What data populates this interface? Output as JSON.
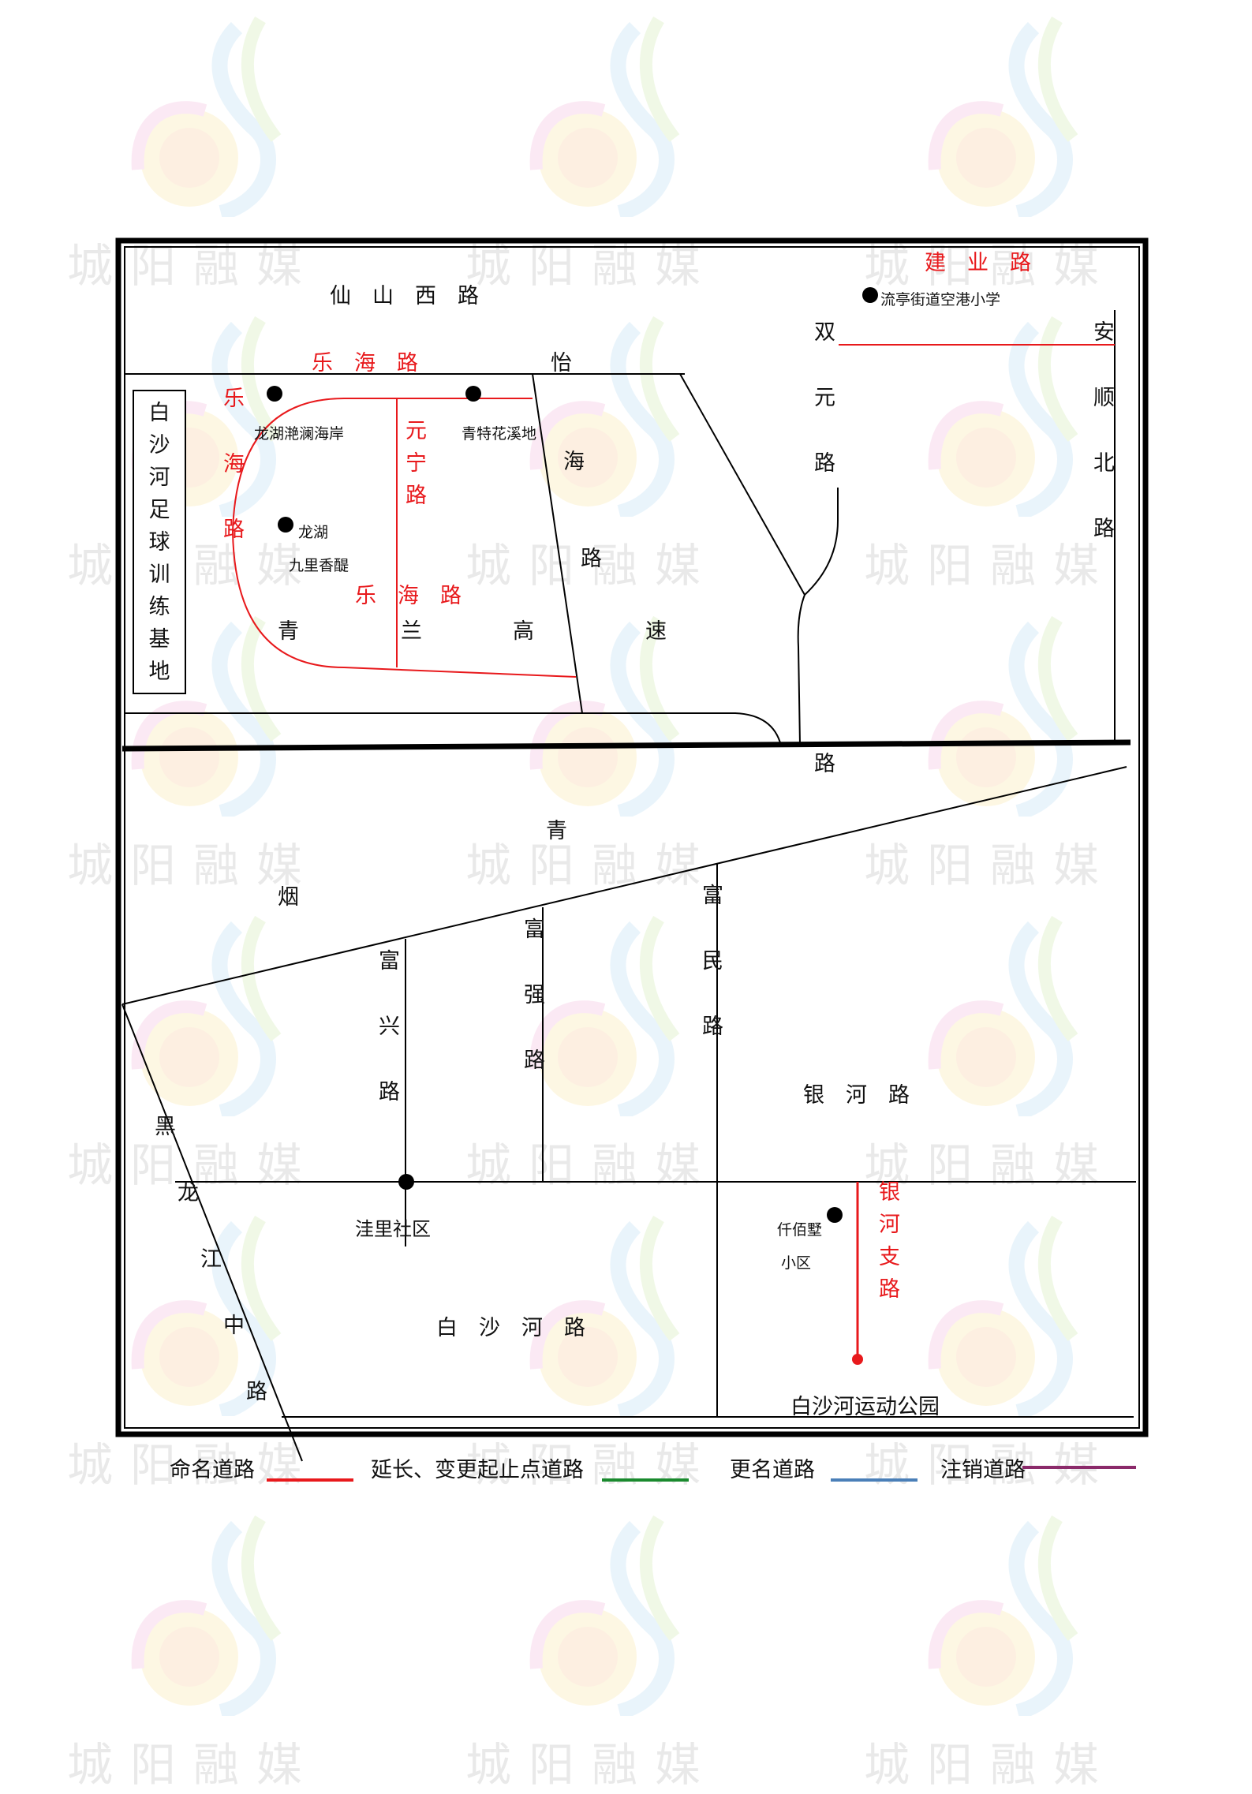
{
  "watermark": {
    "text": "城阳融媒",
    "logo": "chengyang-media-logo"
  },
  "roads": {
    "xianshan_west": "仙　山　西　路",
    "yi_hai_1": "怡",
    "yi_hai_2": "海",
    "yi_hai_3": "路",
    "shuang_yuan": [
      "双",
      "元",
      "路"
    ],
    "an_shun_north": [
      "安",
      "顺",
      "北",
      "路"
    ],
    "jian_ye": "建　业　路",
    "le_hai_top": "乐　海　路",
    "le_hai_left": [
      "乐",
      "海",
      "路"
    ],
    "le_hai_inner": "乐　海　路",
    "yuan_ning": [
      "元",
      "宁",
      "路"
    ],
    "qinglan_qing": "青",
    "qinglan_lan": "兰",
    "qinglan_gao": "高",
    "qinglan_su": "速",
    "qinglan_lu": "路",
    "qing_yan_1": "青",
    "qing_yan_2": "烟",
    "fu_xing": [
      "富",
      "兴",
      "路"
    ],
    "fu_qiang": [
      "富",
      "强",
      "路"
    ],
    "fu_min": [
      "富",
      "民",
      "路"
    ],
    "yin_he": "银　河　路",
    "yin_he_branch": [
      "银",
      "河",
      "支",
      "路"
    ],
    "heilongjiang_middle": [
      "黑",
      "龙",
      "江",
      "中",
      "路"
    ],
    "baishahe": "白　沙　河　路"
  },
  "places": {
    "football_base": [
      "白",
      "沙",
      "河",
      "足",
      "球",
      "训",
      "练",
      "基",
      "地"
    ],
    "liuting_school": "流亭街道空港小学",
    "longhu_lanhai": "龙湖滟澜海岸",
    "qingte_xixi": "青特花溪地",
    "longhu_1": "龙湖",
    "longhu_2": "九里香醍",
    "wali_community": "洼里社区",
    "qianxin_1": "仟佰墅",
    "qianxin_2": "小区",
    "sports_park": "白沙河运动公园"
  },
  "legend": [
    {
      "label": "命名道路",
      "color": "#e8191c"
    },
    {
      "label": "延长、变更起止点道路",
      "color": "#1a8a2e"
    },
    {
      "label": "更名道路",
      "color": "#4a7fb8"
    },
    {
      "label": "注销道路",
      "color": "#8b2a6a"
    }
  ],
  "colors": {
    "named_road": "#e8191c",
    "road": "#000000"
  }
}
